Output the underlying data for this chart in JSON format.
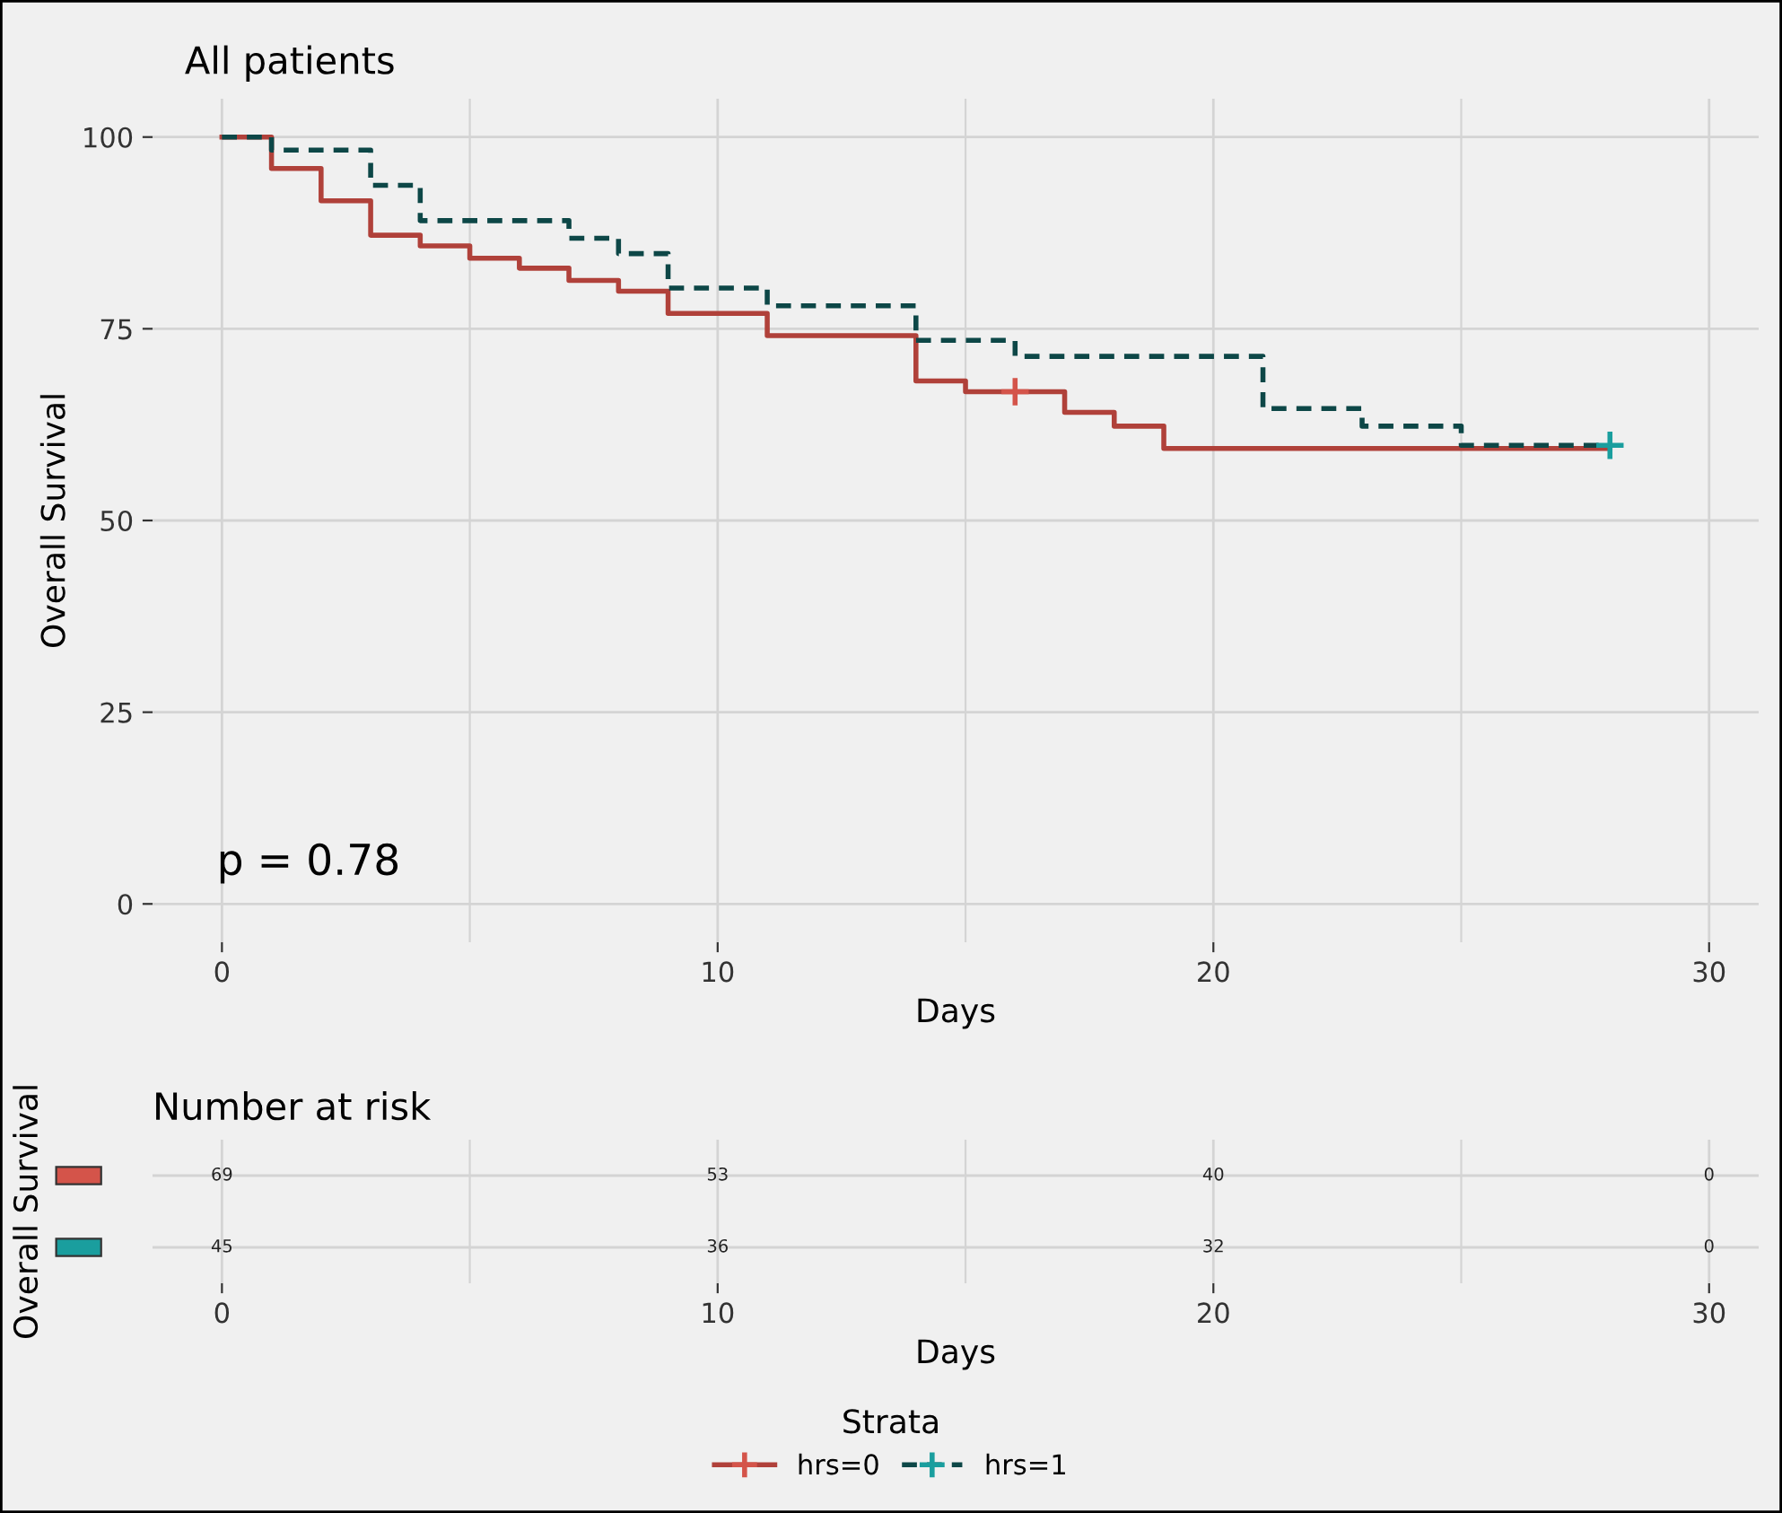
{
  "chart_data": [
    {
      "type": "step",
      "title": "All patients",
      "xlabel": "Days",
      "ylabel": "Overall Survival",
      "legend_title": "Strata",
      "legend": "bottom",
      "grid": true,
      "xlim": [
        -1.4,
        31
      ],
      "ylim": [
        -5,
        105
      ],
      "xticks": [
        0,
        10,
        20,
        30
      ],
      "yticks": [
        0,
        25,
        50,
        75,
        100
      ],
      "annotations": [
        "p = 0.78"
      ],
      "series": [
        {
          "name": "hrs=0",
          "type": "step",
          "color": "#b0413a",
          "line_style": "solid",
          "x": [
            0,
            1,
            2,
            3,
            4,
            5,
            6,
            7,
            8,
            9,
            11,
            14,
            15,
            17,
            18,
            19,
            28
          ],
          "values": [
            100,
            95.9,
            91.7,
            87.2,
            85.8,
            84.2,
            82.9,
            81.3,
            79.9,
            77.0,
            74.1,
            68.2,
            66.8,
            64.1,
            62.3,
            59.4,
            59.4
          ]
        },
        {
          "name": "hrs=1",
          "type": "step",
          "color": "#0d4747",
          "line_style": "dashed",
          "x": [
            0,
            1,
            3,
            4,
            7,
            8,
            9,
            11,
            14,
            16,
            21,
            23,
            25,
            28
          ],
          "values": [
            100,
            98.3,
            93.7,
            89.1,
            86.8,
            84.8,
            80.3,
            78.0,
            73.5,
            71.4,
            64.6,
            62.3,
            59.8,
            59.8
          ]
        },
        {
          "type": "scatter",
          "marker": "cross",
          "color": "#d4544a",
          "x": [
            16
          ],
          "values": [
            66.8
          ]
        },
        {
          "type": "scatter",
          "marker": "cross",
          "color": "#1a9e9e",
          "x": [
            28
          ],
          "values": [
            59.8
          ]
        }
      ]
    },
    {
      "type": "heatmap",
      "title": "Number at risk",
      "xlabel": "Days",
      "ylabel": "Overall Survival",
      "categories": [
        "0",
        "10",
        "20",
        "30"
      ],
      "y_categories": [
        null,
        null
      ],
      "data_labels": true,
      "grid": true,
      "cells": [
        [
          69,
          53,
          40,
          0
        ],
        [
          45,
          36,
          32,
          0
        ]
      ]
    }
  ]
}
